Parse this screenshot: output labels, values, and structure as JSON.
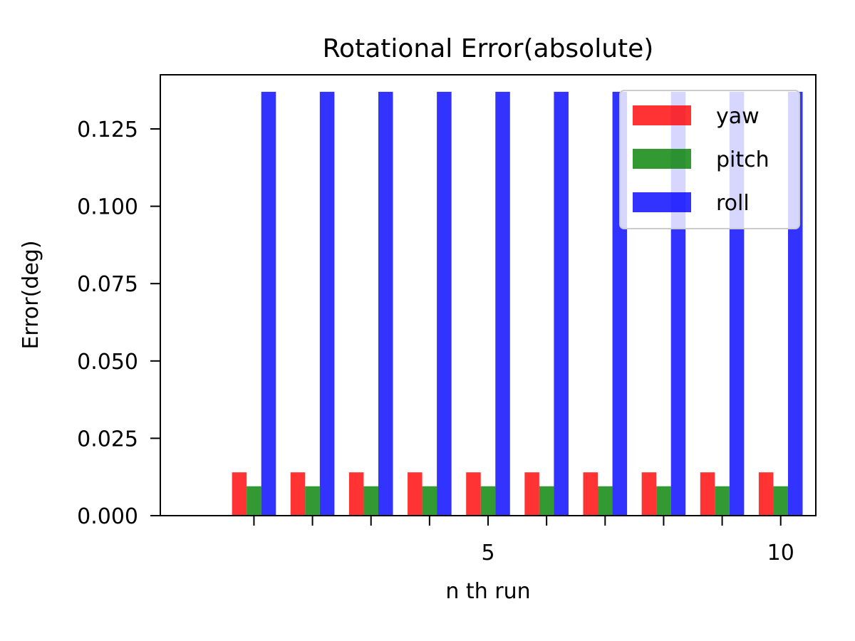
{
  "chart_data": {
    "type": "bar",
    "title": "Rotational Error(absolute)",
    "xlabel": "n th run",
    "ylabel": "Error(deg)",
    "categories": [
      1,
      2,
      3,
      4,
      5,
      6,
      7,
      8,
      9,
      10
    ],
    "xlim": [
      -0.6,
      10.6
    ],
    "ylim": [
      0,
      0.1425
    ],
    "x_ticks": [
      1,
      2,
      3,
      4,
      5,
      6,
      7,
      8,
      9,
      10
    ],
    "x_tick_labels": [
      "",
      "",
      "",
      "",
      "5",
      "",
      "",
      "",
      "",
      "10"
    ],
    "y_ticks": [
      0,
      0.025,
      0.05,
      0.075,
      0.1,
      0.125
    ],
    "y_tick_labels": [
      "0.000",
      "0.025",
      "0.050",
      "0.075",
      "0.100",
      "0.125"
    ],
    "grid": false,
    "legend_position": "top-right",
    "series": [
      {
        "name": "yaw",
        "color": "#ff0000",
        "values": [
          0.014,
          0.014,
          0.014,
          0.014,
          0.014,
          0.014,
          0.014,
          0.014,
          0.014,
          0.014
        ]
      },
      {
        "name": "pitch",
        "color": "#008000",
        "values": [
          0.0095,
          0.0095,
          0.0095,
          0.0095,
          0.0095,
          0.0095,
          0.0095,
          0.0095,
          0.0095,
          0.0095
        ]
      },
      {
        "name": "roll",
        "color": "#0000ff",
        "values": [
          0.137,
          0.137,
          0.137,
          0.137,
          0.137,
          0.137,
          0.137,
          0.137,
          0.137,
          0.137
        ]
      }
    ]
  }
}
